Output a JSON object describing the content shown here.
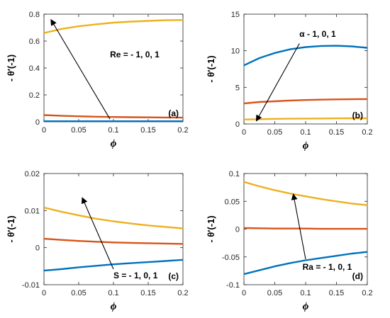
{
  "chart_data": [
    {
      "type": "line",
      "panel_label": "(a)",
      "xlabel": "ϕ",
      "ylabel": "- θ′(-1)",
      "xlim": [
        0,
        0.2
      ],
      "ylim": [
        0,
        0.8
      ],
      "xticks": [
        0,
        0.05,
        0.1,
        0.15,
        0.2
      ],
      "xtick_labels": [
        "0",
        "0.05",
        "0.1",
        "0.15",
        "0.2"
      ],
      "yticks": [
        0,
        0.2,
        0.4,
        0.6,
        0.8
      ],
      "ytick_labels": [
        "0",
        "0.2",
        "0.4",
        "0.6",
        "0.8"
      ],
      "x": [
        0,
        0.025,
        0.05,
        0.075,
        0.1,
        0.125,
        0.15,
        0.175,
        0.2
      ],
      "series": [
        {
          "color": "#0072BD",
          "values": [
            0.004,
            0.004,
            0.004,
            0.004,
            0.004,
            0.004,
            0.004,
            0.004,
            0.004
          ]
        },
        {
          "color": "#D95319",
          "values": [
            0.05,
            0.045,
            0.041,
            0.038,
            0.036,
            0.034,
            0.033,
            0.032,
            0.031
          ]
        },
        {
          "color": "#EDB120",
          "values": [
            0.66,
            0.69,
            0.71,
            0.725,
            0.737,
            0.745,
            0.75,
            0.755,
            0.757
          ]
        }
      ],
      "annotation": {
        "text": "Re = - 1, 0, 1",
        "x": 0.095,
        "y": 0.5,
        "arrow_from": [
          0.095,
          0.02
        ],
        "arrow_to": [
          0.01,
          0.76
        ]
      }
    },
    {
      "type": "line",
      "panel_label": "(b)",
      "xlabel": "ϕ",
      "ylabel": "- θ′(-1)",
      "xlim": [
        0,
        0.2
      ],
      "ylim": [
        0,
        15
      ],
      "xticks": [
        0,
        0.05,
        0.1,
        0.15,
        0.2
      ],
      "xtick_labels": [
        "0",
        "0.05",
        "0.1",
        "0.15",
        "0.2"
      ],
      "yticks": [
        0,
        5,
        10,
        15
      ],
      "ytick_labels": [
        "0",
        "5",
        "10",
        "15"
      ],
      "x": [
        0,
        0.025,
        0.05,
        0.075,
        0.1,
        0.125,
        0.15,
        0.175,
        0.2
      ],
      "series": [
        {
          "color": "#0072BD",
          "values": [
            8.0,
            9.0,
            9.7,
            10.2,
            10.5,
            10.65,
            10.68,
            10.6,
            10.4
          ]
        },
        {
          "color": "#D95319",
          "values": [
            2.8,
            3.0,
            3.1,
            3.2,
            3.27,
            3.32,
            3.36,
            3.38,
            3.4
          ]
        },
        {
          "color": "#EDB120",
          "values": [
            0.6,
            0.65,
            0.7,
            0.72,
            0.74,
            0.75,
            0.76,
            0.77,
            0.77
          ]
        }
      ],
      "annotation": {
        "text": "α  - 1, 0, 1",
        "x": 0.09,
        "y": 12.3,
        "arrow_from": [
          0.09,
          11.0
        ],
        "arrow_to": [
          0.02,
          0.4
        ]
      }
    },
    {
      "type": "line",
      "panel_label": "(c)",
      "xlabel": "ϕ",
      "ylabel": "- θ′(-1)",
      "xlim": [
        0,
        0.2
      ],
      "ylim": [
        -0.01,
        0.02
      ],
      "xticks": [
        0,
        0.05,
        0.1,
        0.15,
        0.2
      ],
      "xtick_labels": [
        "0",
        "0.05",
        "0.1",
        "0.15",
        "0.2"
      ],
      "yticks": [
        -0.01,
        0,
        0.01,
        0.02
      ],
      "ytick_labels": [
        "-0.01",
        "0",
        "0.01",
        "0.02"
      ],
      "x": [
        0,
        0.025,
        0.05,
        0.075,
        0.1,
        0.125,
        0.15,
        0.175,
        0.2
      ],
      "series": [
        {
          "color": "#0072BD",
          "values": [
            -0.0062,
            -0.0058,
            -0.0053,
            -0.0049,
            -0.0045,
            -0.0042,
            -0.0039,
            -0.0036,
            -0.0033
          ]
        },
        {
          "color": "#D95319",
          "values": [
            0.0024,
            0.0021,
            0.0018,
            0.0016,
            0.0014,
            0.0013,
            0.0012,
            0.0011,
            0.001
          ]
        },
        {
          "color": "#EDB120",
          "values": [
            0.0108,
            0.0097,
            0.0087,
            0.0078,
            0.0071,
            0.0065,
            0.006,
            0.0056,
            0.0052
          ]
        }
      ],
      "annotation": {
        "text": "S = - 1, 0, 1",
        "x": 0.1,
        "y": -0.0075,
        "arrow_from": [
          0.1,
          -0.0058
        ],
        "arrow_to": [
          0.055,
          0.0135
        ]
      }
    },
    {
      "type": "line",
      "panel_label": "(d)",
      "xlabel": "ϕ",
      "ylabel": "- θ′(-1)",
      "xlim": [
        0,
        0.2
      ],
      "ylim": [
        -0.1,
        0.1
      ],
      "xticks": [
        0,
        0.05,
        0.1,
        0.15,
        0.2
      ],
      "xtick_labels": [
        "0",
        "0.05",
        "0.1",
        "0.15",
        "0.2"
      ],
      "yticks": [
        -0.1,
        -0.05,
        0,
        0.05,
        0.1
      ],
      "ytick_labels": [
        "-0.1",
        "-0.05",
        "0",
        "0.05",
        "0.1"
      ],
      "x": [
        0,
        0.025,
        0.05,
        0.075,
        0.1,
        0.125,
        0.15,
        0.175,
        0.2
      ],
      "series": [
        {
          "color": "#0072BD",
          "values": [
            -0.081,
            -0.074,
            -0.067,
            -0.061,
            -0.056,
            -0.052,
            -0.048,
            -0.044,
            -0.041
          ]
        },
        {
          "color": "#D95319",
          "values": [
            0.002,
            0.0015,
            0.001,
            0.001,
            0.001,
            0.0005,
            0.0005,
            0.0005,
            0.0005
          ]
        },
        {
          "color": "#EDB120",
          "values": [
            0.085,
            0.077,
            0.07,
            0.064,
            0.059,
            0.054,
            0.05,
            0.046,
            0.043
          ]
        }
      ],
      "annotation": {
        "text": "Ra = - 1, 0, 1",
        "x": 0.095,
        "y": -0.068,
        "arrow_from": [
          0.1,
          -0.054
        ],
        "arrow_to": [
          0.08,
          0.063
        ]
      }
    }
  ]
}
